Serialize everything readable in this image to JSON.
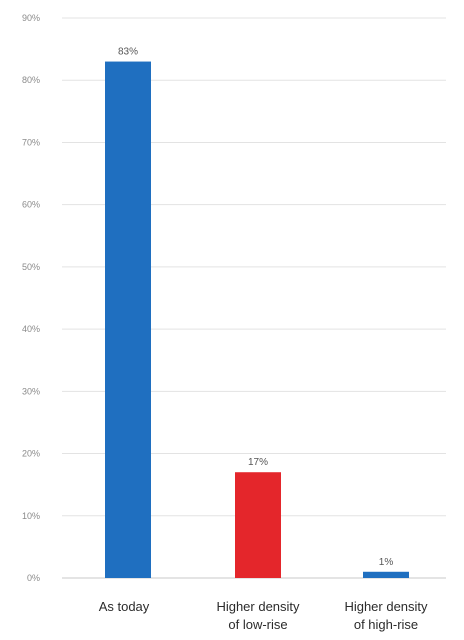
{
  "chart_data": {
    "type": "bar",
    "categories": [
      [
        "As today"
      ],
      [
        "Higher density",
        "of low-rise"
      ],
      [
        "Higher density",
        "of high-rise"
      ]
    ],
    "values": [
      83,
      17,
      1
    ],
    "data_labels": [
      "83%",
      "17%",
      "1%"
    ],
    "bar_colors": [
      "#1f6fc0",
      "#e4262b",
      "#1f6fc0"
    ],
    "ylim": [
      0,
      90
    ],
    "yticks": [
      0,
      10,
      20,
      30,
      40,
      50,
      60,
      70,
      80,
      90
    ],
    "ytick_labels": [
      "0%",
      "10%",
      "20%",
      "30%",
      "40%",
      "50%",
      "60%",
      "70%",
      "80%",
      "90%"
    ],
    "grid": true,
    "legend": "none"
  }
}
